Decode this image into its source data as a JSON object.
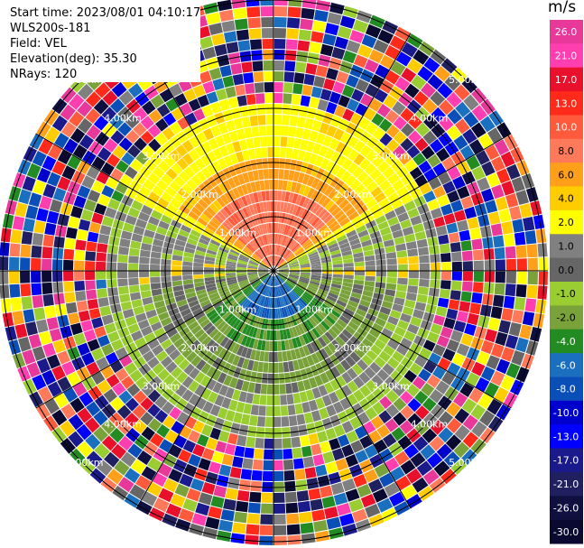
{
  "header": {
    "start_time": "Start time: 2023/08/01 04:10:17",
    "instrument": "WLS200s-181",
    "field": "Field: VEL",
    "elevation": "Elevation(deg): 35.30",
    "nrays": "NRays: 120"
  },
  "colorbar": {
    "unit": "m/s",
    "ticks": [
      "26.0",
      "21.0",
      "17.0",
      "13.0",
      "10.0",
      "8.0",
      "6.0",
      "4.0",
      "2.0",
      "1.0",
      "0.0",
      "-1.0",
      "-2.0",
      "-4.0",
      "-6.0",
      "-8.0",
      "-10.0",
      "-13.0",
      "-17.0",
      "-21.0",
      "-26.0",
      "-30.0"
    ],
    "colors": [
      "#e8389a",
      "#ff3fb0",
      "#e8102a",
      "#ff2a1a",
      "#ff5a3c",
      "#ff7a5a",
      "#ff9f1a",
      "#ffcc00",
      "#ffff00",
      "#808080",
      "#666666",
      "#9acd32",
      "#7aa23a",
      "#228b22",
      "#1a6fbf",
      "#0a4fb8",
      "#0000cd",
      "#0000ff",
      "#1a1a8c",
      "#202060",
      "#101040",
      "#0a0a30"
    ]
  },
  "rings": {
    "labels": [
      "1.00km",
      "2.00km",
      "3.00km",
      "4.00km",
      "5.00km"
    ]
  }
}
